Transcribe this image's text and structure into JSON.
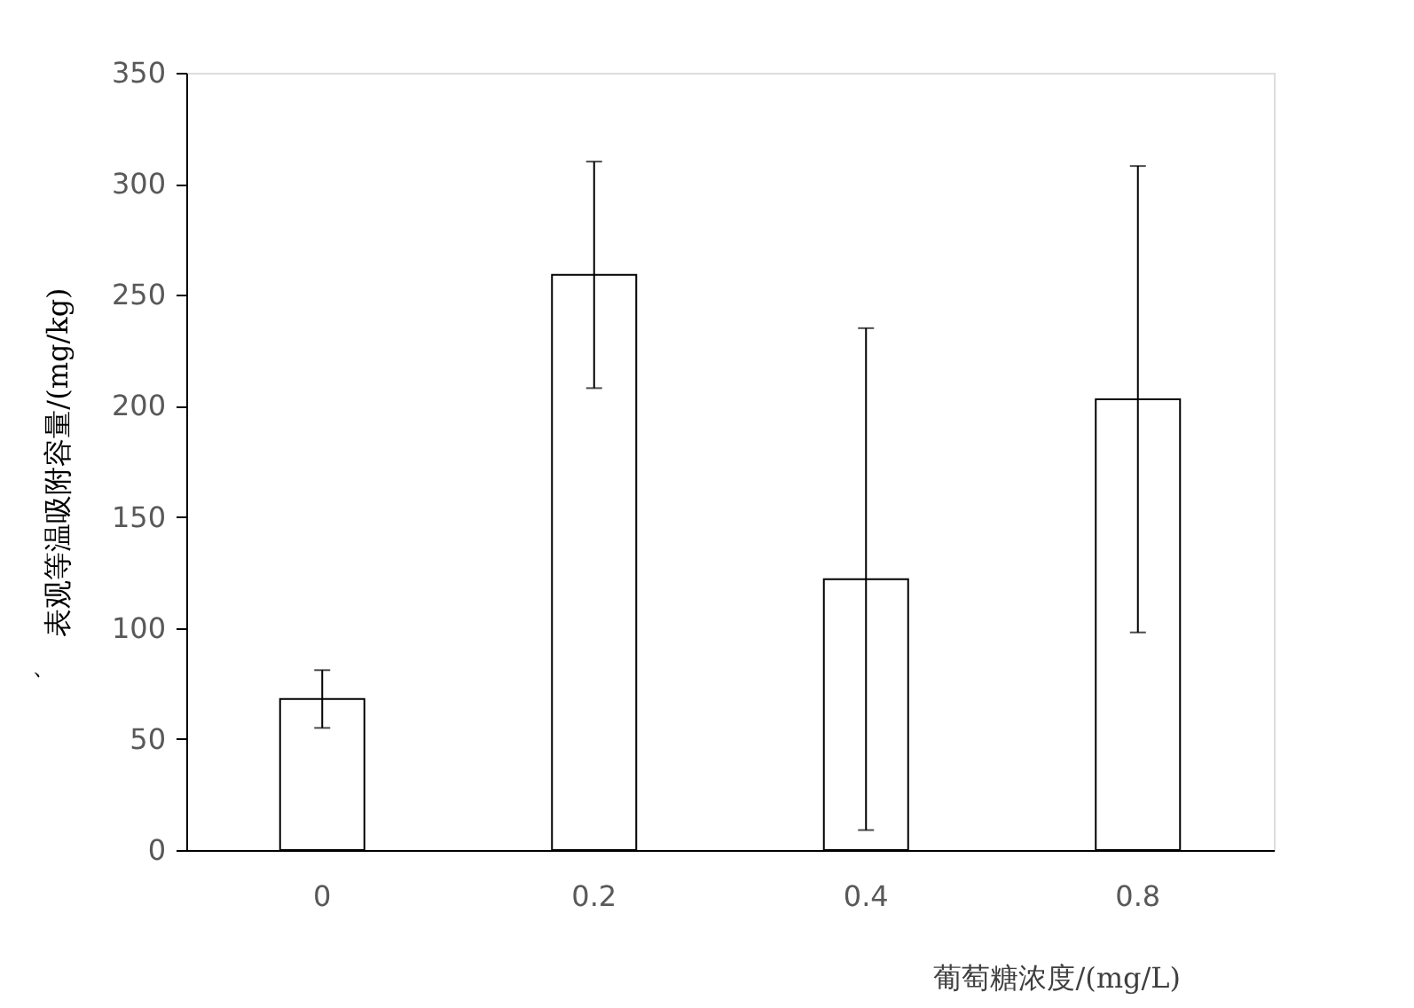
{
  "chart_data": {
    "type": "bar",
    "xlabel": "葡萄糖浓度/(mg/L)",
    "ylabel": "表观等温吸附容量/(mg/kg)",
    "categories": [
      "0",
      "0.2",
      "0.4",
      "0.8"
    ],
    "values": [
      68,
      259,
      122,
      203
    ],
    "errors": [
      13,
      51,
      113,
      105
    ],
    "colors": [
      "#ffffff",
      "#ffffff",
      "#ffffff",
      "#ffffff"
    ],
    "ylim": [
      0,
      350
    ],
    "yticks": [
      0,
      50,
      100,
      150,
      200,
      250,
      300,
      350
    ],
    "grid": false,
    "annotations": [
      "、"
    ]
  }
}
